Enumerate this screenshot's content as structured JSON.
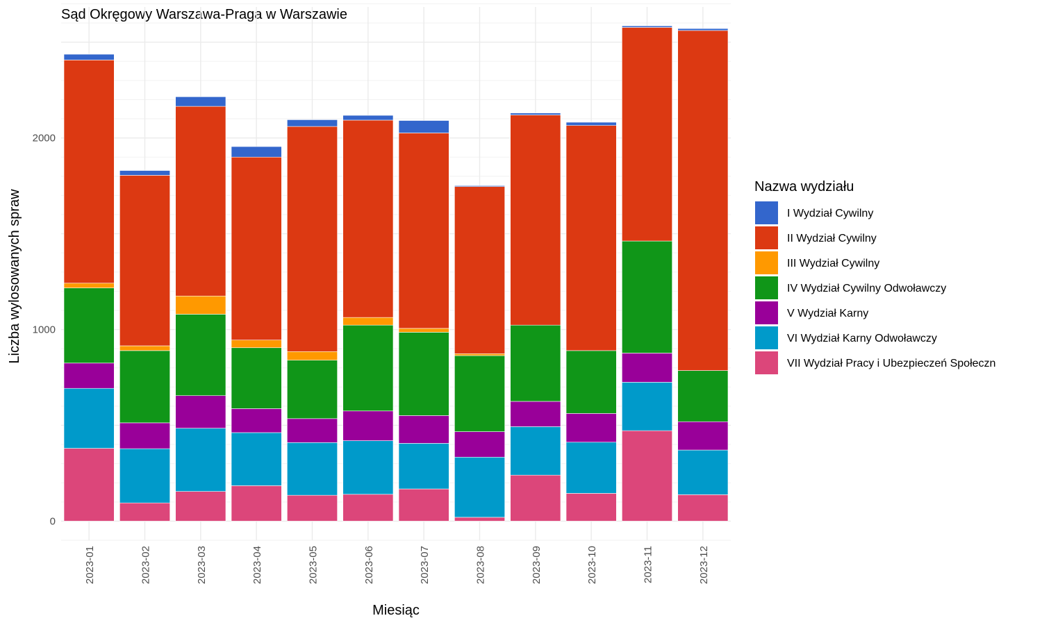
{
  "chart_data": {
    "type": "bar",
    "stacked": true,
    "title": "Sąd Okręgowy Warszawa-Praga w Warszawie",
    "xlabel": "Miesiąc",
    "ylabel": "Liczba wylosowanych spraw",
    "ylim": [
      -100,
      2720
    ],
    "yticks": [
      0,
      1000,
      2000
    ],
    "grid": true,
    "legend_title": "Nazwa wydziału",
    "legend_position": "right",
    "categories": [
      "2023-01",
      "2023-02",
      "2023-03",
      "2023-04",
      "2023-05",
      "2023-06",
      "2023-07",
      "2023-08",
      "2023-09",
      "2023-10",
      "2023-11",
      "2023-12"
    ],
    "series": [
      {
        "name": "VII Wydział Pracy i Ubezpieczeń Społeczn",
        "color": "#DC467A",
        "values": [
          380,
          95,
          155,
          185,
          135,
          140,
          168,
          20,
          240,
          145,
          472,
          138
        ]
      },
      {
        "name": "VI Wydział Karny Odwoławczy",
        "color": "#009ACA",
        "values": [
          313,
          283,
          330,
          277,
          275,
          280,
          238,
          314,
          253,
          267,
          253,
          233
        ]
      },
      {
        "name": "V Wydział Karny",
        "color": "#990099",
        "values": [
          132,
          135,
          170,
          125,
          125,
          155,
          145,
          133,
          132,
          150,
          152,
          148
        ]
      },
      {
        "name": "IV Wydział Cywilny Odwoławczy",
        "color": "#109618",
        "values": [
          392,
          377,
          425,
          318,
          305,
          448,
          435,
          397,
          398,
          328,
          585,
          267
        ]
      },
      {
        "name": "III Wydział Cywilny",
        "color": "#FF9900",
        "values": [
          25,
          25,
          95,
          40,
          45,
          40,
          20,
          10,
          0,
          0,
          0,
          0
        ]
      },
      {
        "name": "II Wydział Cywilny",
        "color": "#DC3912",
        "values": [
          1165,
          890,
          990,
          955,
          1175,
          1030,
          1020,
          872,
          1097,
          1175,
          1115,
          1775
        ]
      },
      {
        "name": "I Wydział Cywilny",
        "color": "#3366CC",
        "values": [
          30,
          25,
          50,
          55,
          35,
          25,
          65,
          5,
          10,
          17,
          8,
          10
        ]
      }
    ]
  }
}
